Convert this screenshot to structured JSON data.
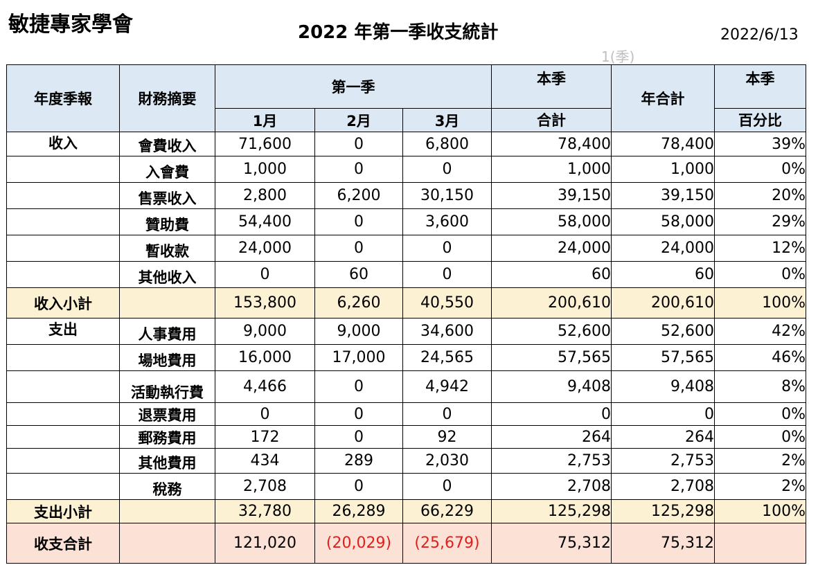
{
  "org_name": "敏捷專家學會",
  "title": "2022 年第一季收支統計",
  "date": "2022/6/13",
  "faint_note": "1(季)",
  "headers": {
    "year_quarter": "年度季報",
    "summary": "財務摘要",
    "q1": "第一季",
    "m1": "1月",
    "m2": "2月",
    "m3": "3月",
    "quarter_total_top": "本季",
    "quarter_total_bottom": "合計",
    "year_total": "年合計",
    "pct_top": "本季",
    "pct_bottom": "百分比"
  },
  "income_rows": [
    {
      "section": "收入",
      "item": "會費收入",
      "m1": "71,600",
      "m2": "0",
      "m3": "6,800",
      "qtotal": "78,400",
      "ytotal": "78,400",
      "pct": "39%"
    },
    {
      "section": "",
      "item": "入會費",
      "m1": "1,000",
      "m2": "0",
      "m3": "0",
      "qtotal": "1,000",
      "ytotal": "1,000",
      "pct": "0%"
    },
    {
      "section": "",
      "item": "售票收入",
      "m1": "2,800",
      "m2": "6,200",
      "m3": "30,150",
      "qtotal": "39,150",
      "ytotal": "39,150",
      "pct": "20%"
    },
    {
      "section": "",
      "item": "贊助費",
      "m1": "54,400",
      "m2": "0",
      "m3": "3,600",
      "qtotal": "58,000",
      "ytotal": "58,000",
      "pct": "29%"
    },
    {
      "section": "",
      "item": "暫收款",
      "m1": "24,000",
      "m2": "0",
      "m3": "0",
      "qtotal": "24,000",
      "ytotal": "24,000",
      "pct": "12%"
    },
    {
      "section": "",
      "item": "其他收入",
      "m1": "0",
      "m2": "60",
      "m3": "0",
      "qtotal": "60",
      "ytotal": "60",
      "pct": "0%"
    }
  ],
  "income_subtotal": {
    "label": "收入小計",
    "m1": "153,800",
    "m2": "6,260",
    "m3": "40,550",
    "qtotal": "200,610",
    "ytotal": "200,610",
    "pct": "100%"
  },
  "expense_rows": [
    {
      "section": "支出",
      "item": "人事費用",
      "m1": "9,000",
      "m2": "9,000",
      "m3": "34,600",
      "qtotal": "52,600",
      "ytotal": "52,600",
      "pct": "42%"
    },
    {
      "section": "",
      "item": "場地費用",
      "m1": "16,000",
      "m2": "17,000",
      "m3": "24,565",
      "qtotal": "57,565",
      "ytotal": "57,565",
      "pct": "46%"
    },
    {
      "section": "",
      "item": "活動執行費",
      "m1": "4,466",
      "m2": "0",
      "m3": "4,942",
      "qtotal": "9,408",
      "ytotal": "9,408",
      "pct": "8%"
    },
    {
      "section": "",
      "item": "退票費用",
      "m1": "0",
      "m2": "0",
      "m3": "0",
      "qtotal": "0",
      "ytotal": "0",
      "pct": "0%"
    },
    {
      "section": "",
      "item": "郵務費用",
      "m1": "172",
      "m2": "0",
      "m3": "92",
      "qtotal": "264",
      "ytotal": "264",
      "pct": "0%"
    },
    {
      "section": "",
      "item": "其他費用",
      "m1": "434",
      "m2": "289",
      "m3": "2,030",
      "qtotal": "2,753",
      "ytotal": "2,753",
      "pct": "2%"
    },
    {
      "section": "",
      "item": "稅務",
      "m1": "2,708",
      "m2": "0",
      "m3": "0",
      "qtotal": "2,708",
      "ytotal": "2,708",
      "pct": "2%"
    }
  ],
  "expense_subtotal": {
    "label": "支出小計",
    "m1": "32,780",
    "m2": "26,289",
    "m3": "66,229",
    "qtotal": "125,298",
    "ytotal": "125,298",
    "pct": "100%"
  },
  "net_total": {
    "label": "收支合計",
    "m1": "121,020",
    "m2": "(20,029)",
    "m3": "(25,679)",
    "qtotal": "75,312",
    "ytotal": "75,312",
    "pct": ""
  },
  "colors": {
    "header_bg": "#dce9f5",
    "subtotal_bg": "#fdf1d4",
    "total_bg": "#fbe1d6",
    "negative": "#e0201b"
  }
}
